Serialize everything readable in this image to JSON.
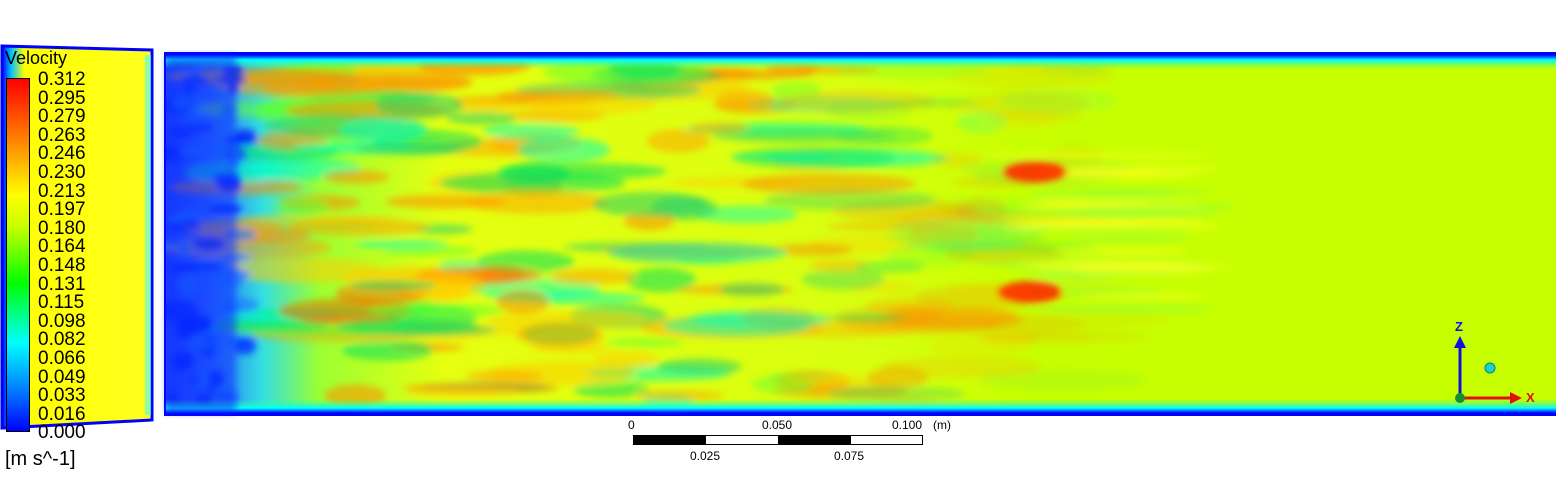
{
  "legend": {
    "title": "Velocity",
    "unit": "[m s^-1]",
    "levels": [
      "0.312",
      "0.295",
      "0.279",
      "0.263",
      "0.246",
      "0.230",
      "0.213",
      "0.197",
      "0.180",
      "0.164",
      "0.148",
      "0.131",
      "0.115",
      "0.098",
      "0.082",
      "0.066",
      "0.049",
      "0.033",
      "0.016",
      "0.000"
    ],
    "colormap": [
      "#0000ff",
      "#00ffff",
      "#00ff00",
      "#ffff00",
      "#ff0000"
    ]
  },
  "scale_bar": {
    "top_labels": [
      "0",
      "0.050",
      "0.100",
      "(m)"
    ],
    "bottom_labels": [
      "0.025",
      "0.075"
    ]
  },
  "axis_triad": {
    "vertical": "Z",
    "horizontal": "X",
    "vertical_color": "#1010e0",
    "horizontal_color": "#e01010"
  },
  "colors": {
    "channel_outer_wall": "#0000ff",
    "freestream": "#c8ff00",
    "turbulent_high": "#ff5500",
    "turbulent_low": "#00e070",
    "inlet_low": "#1040ff"
  }
}
